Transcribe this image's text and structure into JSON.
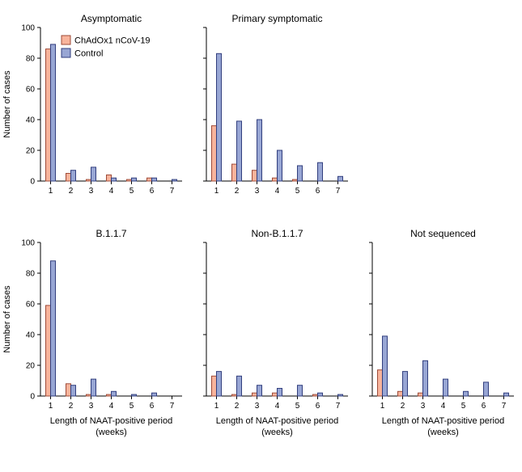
{
  "figure": {
    "ylabel": "Number of cases",
    "xlabel_line1": "Length of NAAT-positive period",
    "xlabel_line2": "(weeks)"
  },
  "legend": [
    {
      "label": "ChAdOx1 nCoV-19",
      "fill": "#F8B49C",
      "stroke": "#9E4B38"
    },
    {
      "label": "Control",
      "fill": "#98A6D4",
      "stroke": "#323F7E"
    }
  ],
  "axis": {
    "ylim": [
      0,
      100
    ],
    "yticks": [
      0,
      20,
      40,
      60,
      80,
      100
    ]
  },
  "chart_data": [
    {
      "type": "bar",
      "title": "Asymptomatic",
      "row": 0,
      "categories": [
        "1",
        "2",
        "3",
        "4",
        "5",
        "6",
        "7"
      ],
      "series": [
        {
          "name": "ChAdOx1 nCoV-19",
          "values": [
            86,
            5,
            1,
            4,
            1,
            2,
            0
          ]
        },
        {
          "name": "Control",
          "values": [
            89,
            7,
            9,
            2,
            2,
            2,
            1
          ]
        }
      ],
      "legend_visible": true,
      "y_labels_visible": true,
      "xlabel_visible": false
    },
    {
      "type": "bar",
      "title": "Primary symptomatic",
      "row": 0,
      "categories": [
        "1",
        "2",
        "3",
        "4",
        "5",
        "6",
        "7"
      ],
      "series": [
        {
          "name": "ChAdOx1 nCoV-19",
          "values": [
            36,
            11,
            7,
            2,
            1,
            0,
            0
          ]
        },
        {
          "name": "Control",
          "values": [
            83,
            39,
            40,
            20,
            10,
            12,
            3
          ]
        }
      ],
      "legend_visible": false,
      "y_labels_visible": false,
      "xlabel_visible": false
    },
    {
      "type": "bar",
      "title": "B.1.1.7",
      "row": 1,
      "categories": [
        "1",
        "2",
        "3",
        "4",
        "5",
        "6",
        "7"
      ],
      "series": [
        {
          "name": "ChAdOx1 nCoV-19",
          "values": [
            59,
            8,
            1,
            1,
            0,
            0,
            0
          ]
        },
        {
          "name": "Control",
          "values": [
            88,
            7,
            11,
            3,
            1,
            2,
            0
          ]
        }
      ],
      "legend_visible": false,
      "y_labels_visible": true,
      "xlabel_visible": true
    },
    {
      "type": "bar",
      "title": "Non-B.1.1.7",
      "row": 1,
      "categories": [
        "1",
        "2",
        "3",
        "4",
        "5",
        "6",
        "7"
      ],
      "series": [
        {
          "name": "ChAdOx1 nCoV-19",
          "values": [
            13,
            1,
            2,
            2,
            0,
            1,
            0
          ]
        },
        {
          "name": "Control",
          "values": [
            16,
            13,
            7,
            5,
            7,
            2,
            1
          ]
        }
      ],
      "legend_visible": false,
      "y_labels_visible": false,
      "xlabel_visible": true
    },
    {
      "type": "bar",
      "title": "Not sequenced",
      "row": 1,
      "categories": [
        "1",
        "2",
        "3",
        "4",
        "5",
        "6",
        "7"
      ],
      "series": [
        {
          "name": "ChAdOx1 nCoV-19",
          "values": [
            17,
            3,
            2,
            0,
            0,
            0,
            0
          ]
        },
        {
          "name": "Control",
          "values": [
            39,
            16,
            23,
            11,
            3,
            9,
            2
          ]
        }
      ],
      "legend_visible": false,
      "y_labels_visible": false,
      "xlabel_visible": true
    }
  ]
}
